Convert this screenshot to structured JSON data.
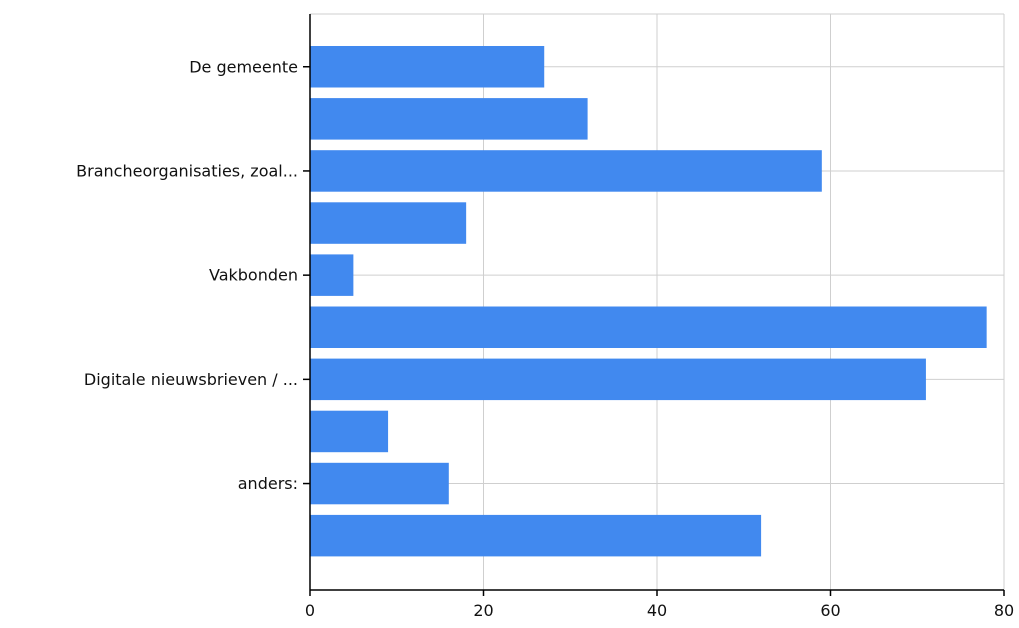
{
  "chart_data": {
    "type": "bar",
    "orientation": "horizontal",
    "categories": [
      "De gemeente",
      "",
      "Brancheorganisaties, zoal...",
      "",
      "Vakbonden",
      "",
      "Digitale nieuwsbrieven / ...",
      "",
      "anders:",
      ""
    ],
    "values": [
      27,
      32,
      59,
      18,
      5,
      78,
      71,
      9,
      16,
      52
    ],
    "xlim": [
      0,
      80
    ],
    "x_ticks": [
      "0",
      "20",
      "40",
      "60",
      "80"
    ],
    "grid": true,
    "colors": {
      "bar": "#4189ef",
      "grid": "#cfcfcf",
      "axis": "#000000"
    }
  }
}
